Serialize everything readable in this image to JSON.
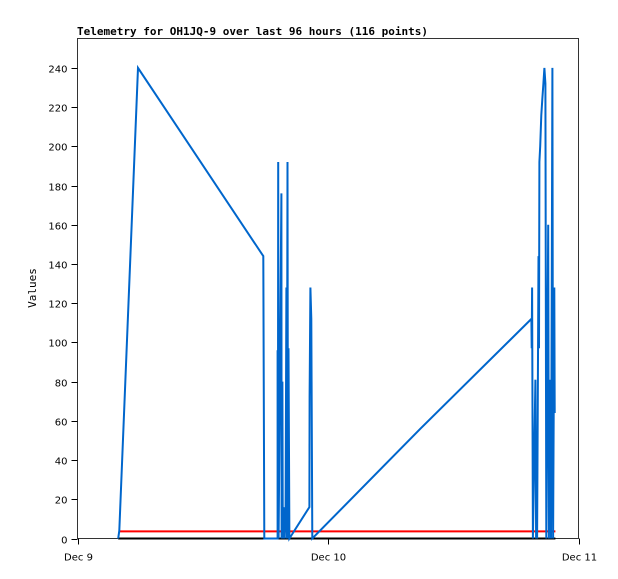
{
  "chart_data": {
    "type": "line",
    "title": "Telemetry for OH1JQ-9 over last 96 hours (116 points)",
    "xlabel": "",
    "ylabel": "Values",
    "ylim": [
      0,
      255
    ],
    "yticks": [
      0,
      20,
      40,
      60,
      80,
      100,
      120,
      140,
      160,
      180,
      200,
      220,
      240
    ],
    "xticks": [
      "Dec 9",
      "Dec 10",
      "Dec 11"
    ],
    "xlim": [
      "Dec 9 00:00",
      "Dec 11 00:00"
    ],
    "grid": false,
    "legend": "none",
    "series": [
      {
        "color": "#0066cc",
        "points": [
          [
            "Dec 9 03:54",
            0
          ],
          [
            "Dec 9 04:00",
            4
          ],
          [
            "Dec 9 05:48",
            240
          ],
          [
            "Dec 9 17:48",
            144
          ],
          [
            "Dec 9 17:54",
            0
          ],
          [
            "Dec 9 19:10",
            0
          ],
          [
            "Dec 9 19:10",
            96
          ],
          [
            "Dec 9 19:12",
            0
          ],
          [
            "Dec 9 19:14",
            192
          ],
          [
            "Dec 9 19:16",
            0
          ],
          [
            "Dec 9 19:32",
            176
          ],
          [
            "Dec 9 19:33",
            0
          ],
          [
            "Dec 9 19:38",
            80
          ],
          [
            "Dec 9 19:40",
            0
          ],
          [
            "Dec 9 19:44",
            16
          ],
          [
            "Dec 9 19:50",
            0
          ],
          [
            "Dec 9 19:56",
            16
          ],
          [
            "Dec 9 20:01",
            128
          ],
          [
            "Dec 9 20:03",
            0
          ],
          [
            "Dec 9 20:07",
            192
          ],
          [
            "Dec 9 20:10",
            0
          ],
          [
            "Dec 9 20:13",
            97
          ],
          [
            "Dec 9 20:18",
            0
          ],
          [
            "Dec 9 22:13",
            16
          ],
          [
            "Dec 9 22:14",
            72
          ],
          [
            "Dec 9 22:19",
            128
          ],
          [
            "Dec 9 22:24",
            112
          ],
          [
            "Dec 9 22:30",
            0
          ],
          [
            "Dec 10 08:51",
            56
          ],
          [
            "Dec 10 19:29",
            112
          ],
          [
            "Dec 10 19:31",
            97
          ],
          [
            "Dec 10 19:33",
            128
          ],
          [
            "Dec 10 19:38",
            0
          ],
          [
            "Dec 10 19:52",
            81
          ],
          [
            "Dec 10 19:56",
            0
          ],
          [
            "Dec 10 19:58",
            25
          ],
          [
            "Dec 10 20:02",
            0
          ],
          [
            "Dec 10 20:10",
            144
          ],
          [
            "Dec 10 20:13",
            97
          ],
          [
            "Dec 10 20:15",
            192
          ],
          [
            "Dec 10 20:20",
            200
          ],
          [
            "Dec 10 20:26",
            216
          ],
          [
            "Dec 10 20:32",
            224
          ],
          [
            "Dec 10 20:38",
            232
          ],
          [
            "Dec 10 20:44",
            240
          ],
          [
            "Dec 10 20:50",
            232
          ],
          [
            "Dec 10 20:55",
            0
          ],
          [
            "Dec 10 21:06",
            160
          ],
          [
            "Dec 10 21:10",
            0
          ],
          [
            "Dec 10 21:18",
            81
          ],
          [
            "Dec 10 21:22",
            0
          ],
          [
            "Dec 10 21:30",
            240
          ],
          [
            "Dec 10 21:34",
            0
          ],
          [
            "Dec 10 21:41",
            128
          ],
          [
            "Dec 10 21:43",
            64
          ]
        ]
      },
      {
        "color": "#ff0000",
        "points": [
          [
            "Dec 9 04:00",
            3.6
          ],
          [
            "Dec 10 21:47",
            3.6
          ]
        ]
      },
      {
        "color": "#000000",
        "points": [
          [
            "Dec 9 03:54",
            0
          ],
          [
            "Dec 10 21:47",
            0
          ]
        ]
      }
    ]
  }
}
